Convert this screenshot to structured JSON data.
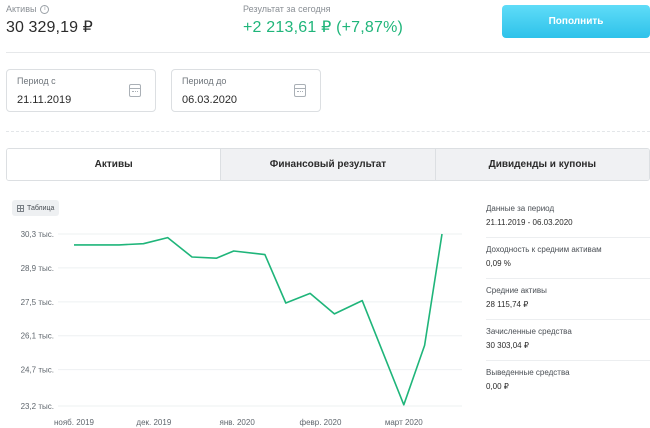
{
  "header": {
    "assets_label": "Активы",
    "assets_value": "30 329,19 ₽",
    "today_label": "Результат за сегодня",
    "today_value": "+2 213,61 ₽  (+7,87%)",
    "topup_label": "Пополнить",
    "accent_color": "#1fb57a",
    "button_color": "#2ec2ea"
  },
  "period": {
    "from_label": "Период с",
    "from_value": "21.11.2019",
    "to_label": "Период до",
    "to_value": "06.03.2020"
  },
  "tabs": [
    {
      "label": "Активы",
      "active": true
    },
    {
      "label": "Финансовый результат",
      "active": false
    },
    {
      "label": "Дивиденды и купоны",
      "active": false
    }
  ],
  "table_toggle_label": "Таблица",
  "summary": [
    {
      "label": "Данные за период",
      "value": "21.11.2019 - 06.03.2020"
    },
    {
      "label": "Доходность к средним активам",
      "value": "0,09 %"
    },
    {
      "label": "Средние активы",
      "value": "28 115,74 ₽"
    },
    {
      "label": "Зачисленные средства",
      "value": "30 303,04 ₽"
    },
    {
      "label": "Выведенные средства",
      "value": "0,00 ₽"
    }
  ],
  "chart_data": {
    "type": "line",
    "line_color": "#1fb57a",
    "grid": true,
    "yticks": [
      {
        "value": 30.3,
        "label": "30,3 тыс."
      },
      {
        "value": 28.9,
        "label": "28,9 тыс."
      },
      {
        "value": 27.5,
        "label": "27,5 тыс."
      },
      {
        "value": 26.1,
        "label": "26,1 тыс."
      },
      {
        "value": 24.7,
        "label": "24,7 тыс."
      },
      {
        "value": 23.2,
        "label": "23,2 тыс."
      }
    ],
    "ylim": [
      23.2,
      30.3
    ],
    "xticks": [
      {
        "label": "нояб. 2019",
        "date": "2019-11-21"
      },
      {
        "label": "дек. 2019",
        "date": "2019-12-14"
      },
      {
        "label": "янв. 2020",
        "date": "2020-01-07"
      },
      {
        "label": "февр. 2020",
        "date": "2020-01-31"
      },
      {
        "label": "март 2020",
        "date": "2020-02-24"
      }
    ],
    "xlim": [
      "2019-11-21",
      "2020-03-06"
    ],
    "series": [
      {
        "x": [
          "2019-11-21",
          "2019-12-04",
          "2019-12-11",
          "2019-12-18",
          "2019-12-25",
          "2020-01-01",
          "2020-01-06",
          "2020-01-15",
          "2020-01-21",
          "2020-01-28",
          "2020-02-04",
          "2020-02-12",
          "2020-02-24",
          "2020-03-01",
          "2020-03-06"
        ],
        "y": [
          29.85,
          29.85,
          29.9,
          30.15,
          29.35,
          29.3,
          29.6,
          29.45,
          27.45,
          27.85,
          27.0,
          27.55,
          23.25,
          25.7,
          30.3
        ]
      }
    ]
  }
}
